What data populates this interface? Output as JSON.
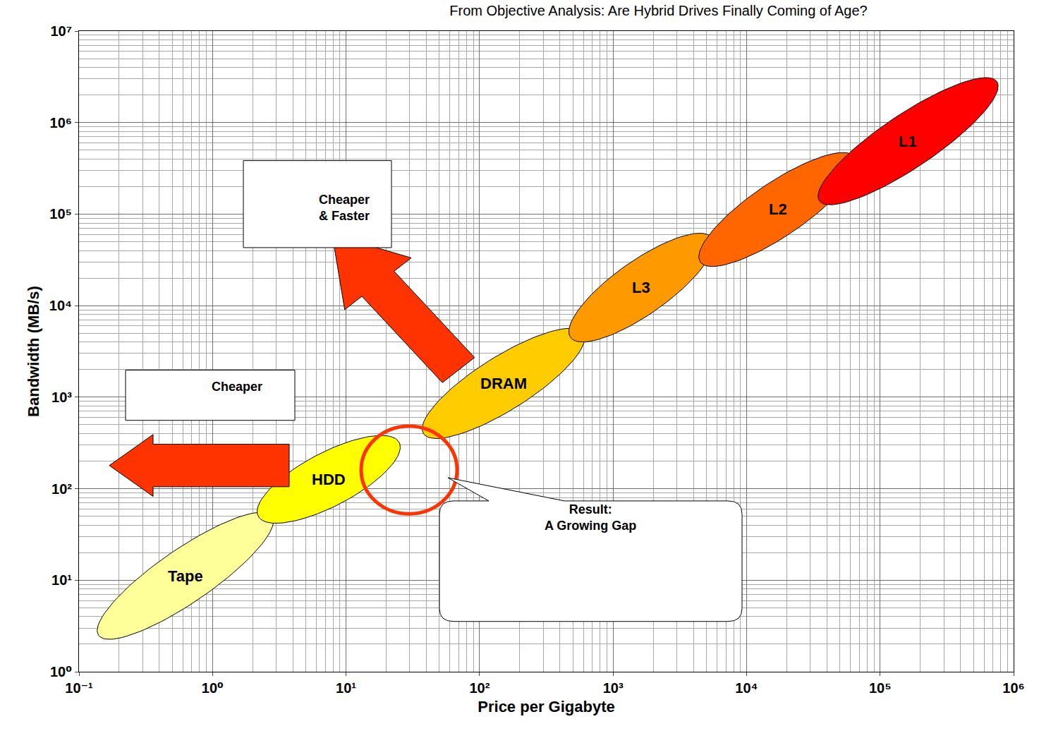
{
  "chart_data": {
    "type": "region",
    "title": "From Objective Analysis: Are Hybrid Drives Finally Coming of Age?",
    "x_label": "Price per Gigabyte",
    "y_label": "Bandwidth (MB/s)",
    "log": true,
    "grid": true,
    "xlim": [
      0.1,
      1000000
    ],
    "ylim": [
      1,
      10000000
    ],
    "xticks": [
      {
        "value": 0.1,
        "label": "10⁻¹"
      },
      {
        "value": 1,
        "label": "10⁰"
      },
      {
        "value": 10,
        "label": "10¹"
      },
      {
        "value": 100,
        "label": "10²"
      },
      {
        "value": 1000,
        "label": "10³"
      },
      {
        "value": 10000,
        "label": "10⁴"
      },
      {
        "value": 100000,
        "label": "10⁵"
      },
      {
        "value": 1000000,
        "label": "10⁶"
      }
    ],
    "yticks": [
      {
        "value": 1,
        "label": "10⁰"
      },
      {
        "value": 10,
        "label": "10¹"
      },
      {
        "value": 100,
        "label": "10²"
      },
      {
        "value": 1000,
        "label": "10³"
      },
      {
        "value": 10000,
        "label": "10⁴"
      },
      {
        "value": 100000,
        "label": "10⁵"
      },
      {
        "value": 1000000,
        "label": "10⁶"
      },
      {
        "value": 10000000,
        "label": "10⁷"
      }
    ],
    "series": [
      {
        "name": "Tape",
        "color": "#FFFF99",
        "x": [
          0.14,
          2.8
        ],
        "y": [
          2.5,
          50
        ]
      },
      {
        "name": "HDD",
        "color": "#FFFF00",
        "x": [
          2.2,
          25
        ],
        "y": [
          50,
          320
        ]
      },
      {
        "name": "DRAM",
        "color": "#FFCC00",
        "x": [
          38,
          600
        ],
        "y": [
          400,
          5000
        ]
      },
      {
        "name": "L3",
        "color": "#FF9900",
        "x": [
          480,
          5500
        ],
        "y": [
          4500,
          55000
        ]
      },
      {
        "name": "L2",
        "color": "#FF6600",
        "x": [
          4500,
          65000
        ],
        "y": [
          30000,
          420000
        ]
      },
      {
        "name": "L1",
        "color": "#FF0000",
        "x": [
          35000,
          750000
        ],
        "y": [
          140000,
          2800000
        ]
      }
    ],
    "annotations": [
      {
        "text": [
          "Cheaper",
          "& Faster"
        ]
      },
      {
        "text": [
          "Cheaper"
        ]
      },
      {
        "text": [
          "Result:",
          "A Growing Gap"
        ]
      }
    ]
  }
}
